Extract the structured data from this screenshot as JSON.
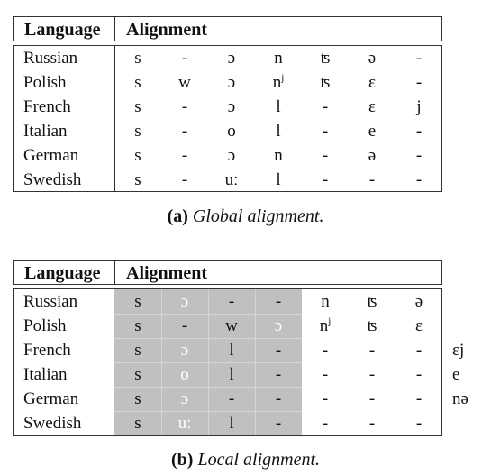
{
  "header": {
    "language": "Language",
    "alignment": "Alignment"
  },
  "table_a": {
    "rows": [
      {
        "language": "Russian",
        "cells": [
          "s",
          "-",
          "ɔ",
          "n",
          "ʦ",
          "ə",
          "-"
        ]
      },
      {
        "language": "Polish",
        "cells": [
          "s",
          "w",
          "ɔ",
          "nʲ",
          "ʦ",
          "ɛ",
          "-"
        ]
      },
      {
        "language": "French",
        "cells": [
          "s",
          "-",
          "ɔ",
          "l",
          "-",
          "ɛ",
          "j"
        ]
      },
      {
        "language": "Italian",
        "cells": [
          "s",
          "-",
          "o",
          "l",
          "-",
          "e",
          "-"
        ]
      },
      {
        "language": "German",
        "cells": [
          "s",
          "-",
          "ɔ",
          "n",
          "-",
          "ə",
          "-"
        ]
      },
      {
        "language": "Swedish",
        "cells": [
          "s",
          "-",
          "uː",
          "l",
          "-",
          "-",
          "-"
        ]
      }
    ],
    "caption_label": "(a)",
    "caption_text": "Global alignment."
  },
  "table_b": {
    "rows": [
      {
        "language": "Russian",
        "cells": [
          "s",
          "ɔ",
          "-",
          "-",
          "n",
          "ʦ",
          "ə"
        ],
        "extra": ""
      },
      {
        "language": "Polish",
        "cells": [
          "s",
          "-",
          "w",
          "ɔ",
          "nʲ",
          "ʦ",
          "ɛ"
        ],
        "extra": ""
      },
      {
        "language": "French",
        "cells": [
          "s",
          "ɔ",
          "l",
          "-",
          "-",
          "-",
          "-"
        ],
        "extra": "ɛj"
      },
      {
        "language": "Italian",
        "cells": [
          "s",
          "o",
          "l",
          "-",
          "-",
          "-",
          "-"
        ],
        "extra": "e"
      },
      {
        "language": "German",
        "cells": [
          "s",
          "ɔ",
          "-",
          "-",
          "-",
          "-",
          "-"
        ],
        "extra": "nə"
      },
      {
        "language": "Swedish",
        "cells": [
          "s",
          "uː",
          "l",
          "-",
          "-",
          "-",
          "-"
        ],
        "extra": ""
      }
    ],
    "caption_label": "(b)",
    "caption_text": "Local alignment."
  }
}
